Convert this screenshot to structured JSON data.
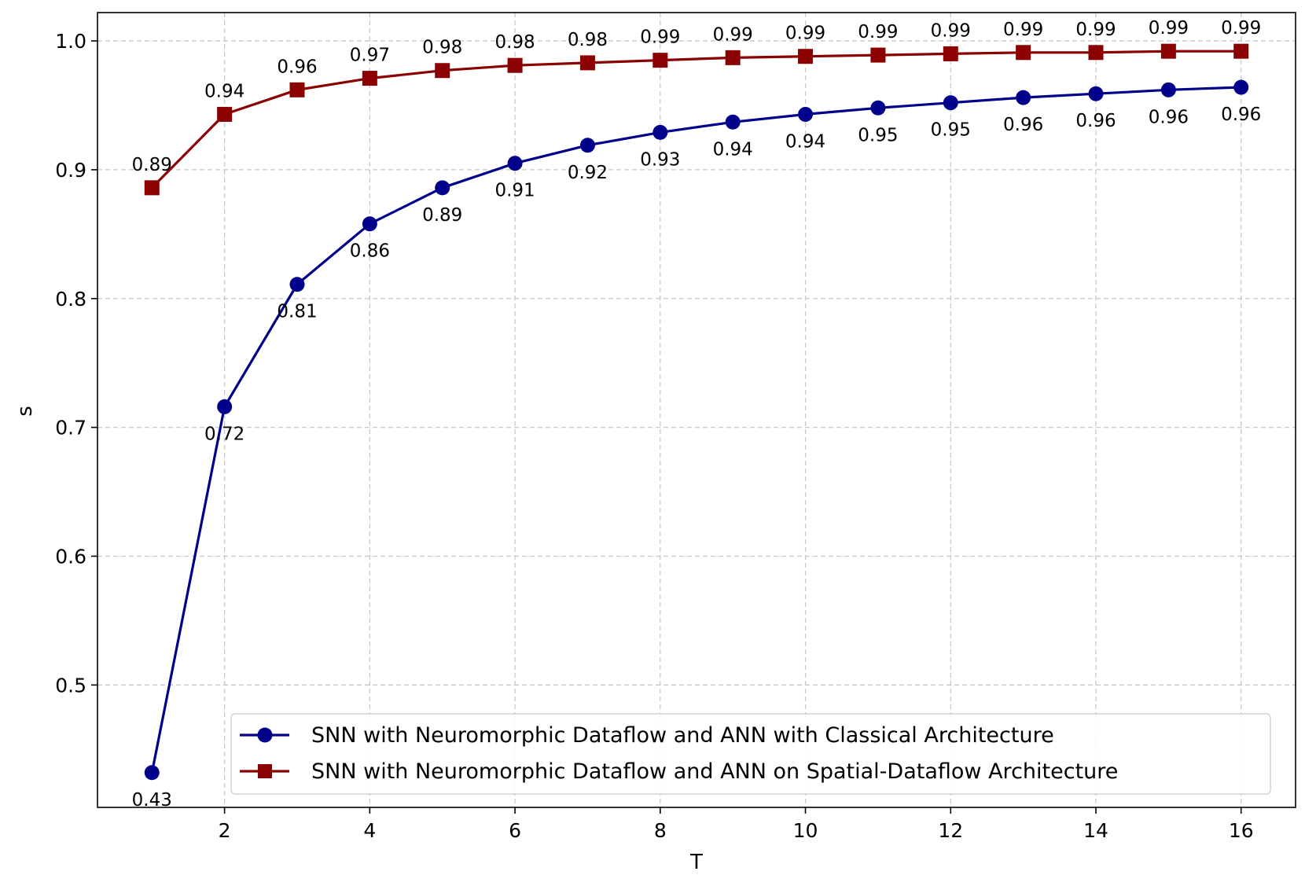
{
  "chart_data": {
    "type": "line",
    "title": "",
    "xlabel": "T",
    "ylabel": "s",
    "xlim": [
      0.25,
      16.75
    ],
    "ylim": [
      0.405,
      1.022
    ],
    "grid": true,
    "legend_position": "bottom-right",
    "x_ticks": [
      2,
      4,
      6,
      8,
      10,
      12,
      14,
      16
    ],
    "x_tick_labels": [
      "2",
      "4",
      "6",
      "8",
      "10",
      "12",
      "14",
      "16"
    ],
    "y_ticks": [
      0.5,
      0.6,
      0.7,
      0.8,
      0.9,
      1.0
    ],
    "y_tick_labels": [
      "0.5",
      "0.6",
      "0.7",
      "0.8",
      "0.9",
      "1.0"
    ],
    "x": [
      1,
      2,
      3,
      4,
      5,
      6,
      7,
      8,
      9,
      10,
      11,
      12,
      13,
      14,
      15,
      16
    ],
    "series": [
      {
        "name": "SNN with Neuromorphic Dataflow and ANN with Classical Architecture",
        "color": "#00008b",
        "marker": "circle",
        "label_position": "below",
        "values": [
          0.432,
          0.716,
          0.811,
          0.858,
          0.886,
          0.905,
          0.919,
          0.929,
          0.937,
          0.943,
          0.948,
          0.952,
          0.956,
          0.959,
          0.962,
          0.964
        ],
        "labels": [
          "0.43",
          "0.72",
          "0.81",
          "0.86",
          "0.89",
          "0.91",
          "0.92",
          "0.93",
          "0.94",
          "0.94",
          "0.95",
          "0.95",
          "0.96",
          "0.96",
          "0.96",
          "0.96"
        ]
      },
      {
        "name": "SNN with Neuromorphic Dataflow and ANN on Spatial-Dataflow Architecture",
        "color": "#8b0000",
        "marker": "square",
        "label_position": "above",
        "values": [
          0.886,
          0.943,
          0.962,
          0.971,
          0.977,
          0.981,
          0.983,
          0.985,
          0.987,
          0.988,
          0.989,
          0.99,
          0.991,
          0.991,
          0.992,
          0.992
        ],
        "labels": [
          "0.89",
          "0.94",
          "0.96",
          "0.97",
          "0.98",
          "0.98",
          "0.98",
          "0.99",
          "0.99",
          "0.99",
          "0.99",
          "0.99",
          "0.99",
          "0.99",
          "0.99",
          "0.99"
        ]
      }
    ]
  }
}
